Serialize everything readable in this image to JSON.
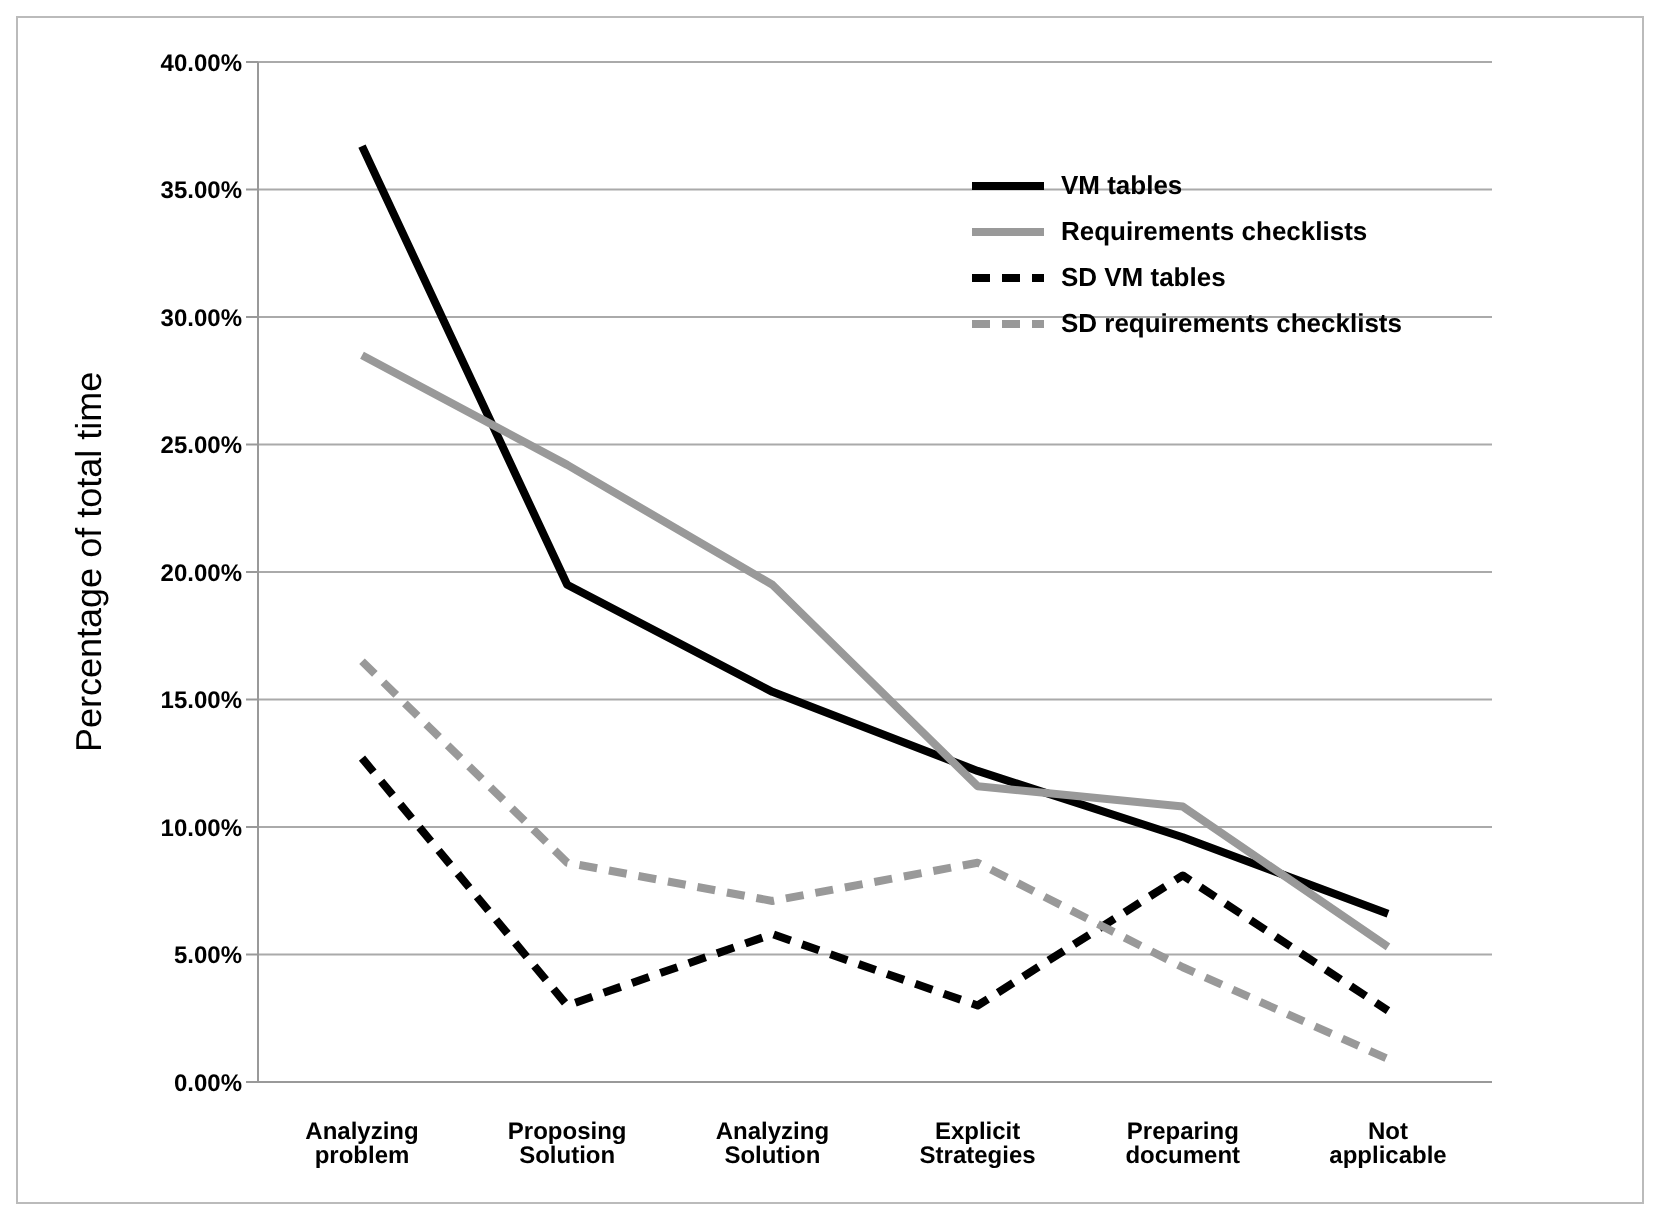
{
  "chart_data": {
    "type": "line",
    "ylabel": "Percentage of total time",
    "categories": [
      "Analyzing problem",
      "Proposing Solution",
      "Analyzing Solution",
      "Explicit Strategies",
      "Preparing document",
      "Not applicable"
    ],
    "series": [
      {
        "name": "VM tables",
        "color": "#000000",
        "line_style": "solid",
        "values": [
          36.7,
          19.5,
          15.3,
          12.2,
          9.6,
          6.6
        ]
      },
      {
        "name": "Requirements checklists",
        "color": "#999999",
        "line_style": "solid",
        "values": [
          28.5,
          24.2,
          19.5,
          11.6,
          10.8,
          5.3
        ]
      },
      {
        "name": "SD VM tables",
        "color": "#000000",
        "line_style": "dashed",
        "values": [
          12.7,
          3.0,
          5.8,
          3.0,
          8.1,
          2.8
        ]
      },
      {
        "name": "SD requirements checklists",
        "color": "#999999",
        "line_style": "dashed",
        "values": [
          16.5,
          8.6,
          7.1,
          8.6,
          4.5,
          0.9
        ]
      }
    ],
    "ylim": [
      0,
      40
    ],
    "yticks": [
      {
        "value": 0,
        "label": "0.00%"
      },
      {
        "value": 5,
        "label": "5.00%"
      },
      {
        "value": 10,
        "label": "10.00%"
      },
      {
        "value": 15,
        "label": "15.00%"
      },
      {
        "value": 20,
        "label": "20.00%"
      },
      {
        "value": 25,
        "label": "25.00%"
      },
      {
        "value": 30,
        "label": "30.00%"
      },
      {
        "value": 35,
        "label": "35.00%"
      },
      {
        "value": 40,
        "label": "40.00%"
      }
    ],
    "grid": "y",
    "legend": "top right",
    "marker": "none"
  }
}
